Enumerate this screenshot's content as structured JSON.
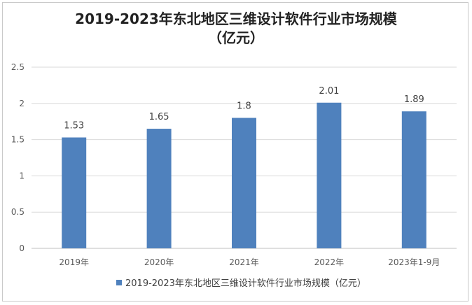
{
  "chart_data": {
    "type": "bar",
    "title": "2019-2023年东北地区三维设计软件行业市场规模",
    "title_line2": "（亿元）",
    "categories": [
      "2019年",
      "2020年",
      "2021年",
      "2022年",
      "2023年1-9月"
    ],
    "series": [
      {
        "name": "2019-2023年东北地区三维设计软件行业市场规模（亿元）",
        "values": [
          1.53,
          1.65,
          1.8,
          2.01,
          1.89
        ],
        "labels": [
          "1.53",
          "1.65",
          "1.8",
          "2.01",
          "1.89"
        ]
      }
    ],
    "y_ticks": [
      "0",
      "0.5",
      "1",
      "1.5",
      "2",
      "2.5"
    ],
    "ylim": [
      0,
      2.5
    ],
    "grid": true,
    "legend_position": "bottom",
    "bar_color": "#4f81bd"
  }
}
